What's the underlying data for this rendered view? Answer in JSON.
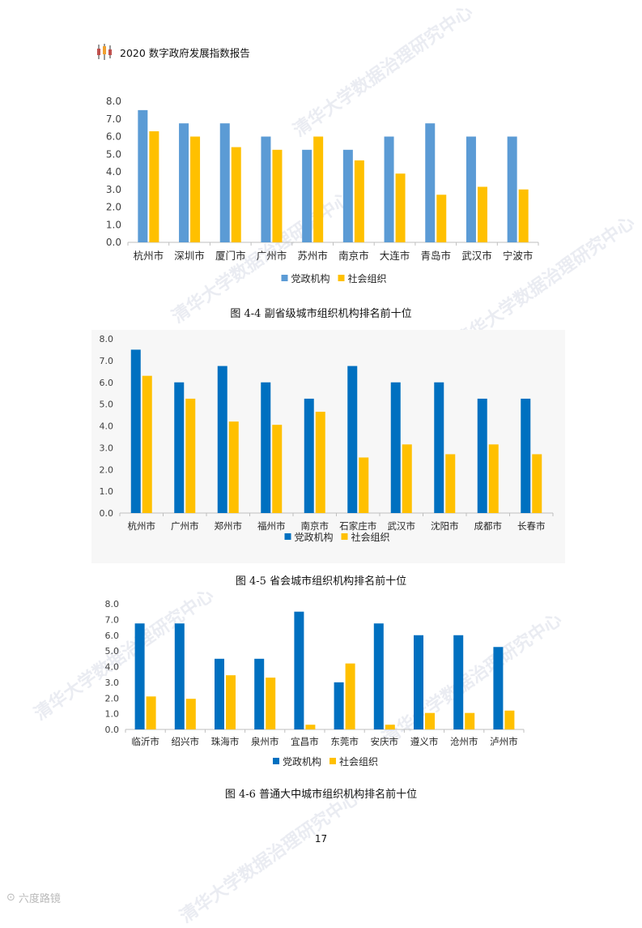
{
  "header": {
    "title": "2020 数字政府发展指数报告"
  },
  "figures": [
    {
      "caption": "图 4-4  副省级城市组织机构排名前十位"
    },
    {
      "caption": "图 4-5  省会城市组织机构排名前十位"
    },
    {
      "caption": "图 4-6  普通大中城市组织机构排名前十位"
    }
  ],
  "page_number": "17",
  "watermark": "清华大学数据治理研究中心",
  "bottom_logo": "六度路镜",
  "chart_data": [
    {
      "type": "bar",
      "categories": [
        "杭州市",
        "深圳市",
        "厦门市",
        "广州市",
        "苏州市",
        "南京市",
        "大连市",
        "青岛市",
        "武汉市",
        "宁波市"
      ],
      "series": [
        {
          "name": "党政机构",
          "values": [
            7.5,
            6.75,
            6.75,
            6.0,
            5.25,
            5.25,
            6.0,
            6.75,
            6.0,
            6.0
          ],
          "color": "#5b9bd5"
        },
        {
          "name": "社会组织",
          "values": [
            6.3,
            6.0,
            5.4,
            5.25,
            6.0,
            4.65,
            3.9,
            2.7,
            3.15,
            3.0
          ],
          "color": "#ffc000"
        }
      ],
      "yticks": [
        "0.0",
        "1.0",
        "2.0",
        "3.0",
        "4.0",
        "5.0",
        "6.0",
        "7.0",
        "8.0"
      ],
      "ylim": [
        0,
        8
      ],
      "grid": false,
      "legend": "bottom"
    },
    {
      "type": "bar",
      "categories": [
        "杭州市",
        "广州市",
        "郑州市",
        "福州市",
        "南京市",
        "石家庄市",
        "武汉市",
        "沈阳市",
        "成都市",
        "长春市"
      ],
      "series": [
        {
          "name": "党政机构",
          "values": [
            7.5,
            6.0,
            6.75,
            6.0,
            5.25,
            6.75,
            6.0,
            6.0,
            5.25,
            5.25
          ],
          "color": "#0070c0"
        },
        {
          "name": "社会组织",
          "values": [
            6.3,
            5.25,
            4.2,
            4.05,
            4.65,
            2.55,
            3.15,
            2.7,
            3.15,
            2.7
          ],
          "color": "#ffc000"
        }
      ],
      "yticks": [
        "0.0",
        "1.0",
        "2.0",
        "3.0",
        "4.0",
        "5.0",
        "6.0",
        "7.0",
        "8.0"
      ],
      "ylim": [
        0,
        8
      ],
      "grid": false,
      "legend": "bottom"
    },
    {
      "type": "bar",
      "categories": [
        "临沂市",
        "绍兴市",
        "珠海市",
        "泉州市",
        "宜昌市",
        "东莞市",
        "安庆市",
        "遵义市",
        "沧州市",
        "泸州市"
      ],
      "series": [
        {
          "name": "党政机构",
          "values": [
            6.75,
            6.75,
            4.5,
            4.5,
            7.5,
            3.0,
            6.75,
            6.0,
            6.0,
            5.25
          ],
          "color": "#0070c0"
        },
        {
          "name": "社会组织",
          "values": [
            2.1,
            1.95,
            3.45,
            3.3,
            0.3,
            4.2,
            0.3,
            1.05,
            1.05,
            1.2
          ],
          "color": "#ffc000"
        }
      ],
      "yticks": [
        "0.0",
        "1.0",
        "2.0",
        "3.0",
        "4.0",
        "5.0",
        "6.0",
        "7.0",
        "8.0"
      ],
      "ylim": [
        0,
        8
      ],
      "grid": false,
      "legend": "bottom"
    }
  ]
}
